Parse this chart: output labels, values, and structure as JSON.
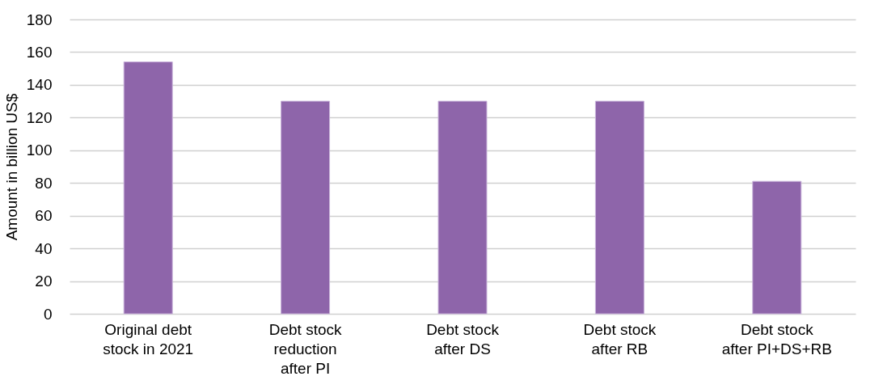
{
  "chart_data": {
    "type": "bar",
    "ylabel": "Amount in billion US$",
    "categories": [
      "Original debt\nstock in 2021",
      "Debt stock\nreduction\nafter PI",
      "Debt stock\nafter DS",
      "Debt stock\nafter RB",
      "Debt stock\nafter PI+DS+RB"
    ],
    "values": [
      154,
      130,
      130,
      130,
      81
    ],
    "color": "#8e65aa",
    "ylim": [
      0,
      180
    ],
    "yticks": [
      0,
      20,
      40,
      60,
      80,
      100,
      120,
      140,
      160,
      180
    ],
    "grid": "y"
  }
}
